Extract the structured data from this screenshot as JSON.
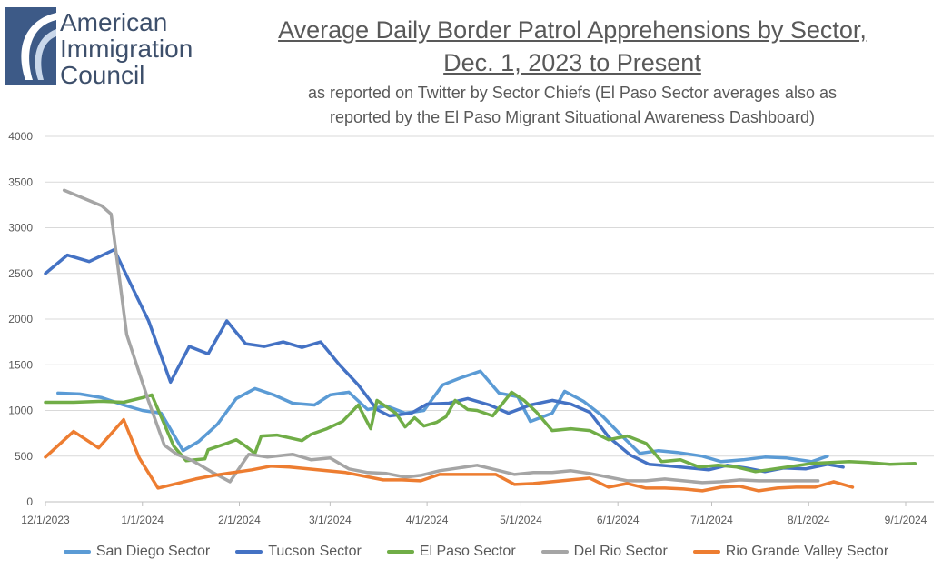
{
  "logo": {
    "line1": "American",
    "line2": "Immigration",
    "line3": "Council"
  },
  "title_line1": "Average Daily Border Patrol Apprehensions by Sector,",
  "title_line2": "Dec. 1, 2023 to Present",
  "subtitle_line1": "as reported on Twitter by Sector Chiefs (El Paso Sector averages also as",
  "subtitle_line2": "reported by the El Paso Migrant Situational Awareness Dashboard)",
  "chart_data": {
    "type": "line",
    "title": "Average Daily Border Patrol Apprehensions by Sector, Dec. 1, 2023 to Present",
    "xlabel": "",
    "ylabel": "",
    "ylim": [
      0,
      4000
    ],
    "yticks": [
      "0",
      "500",
      "1000",
      "1500",
      "2000",
      "2500",
      "3000",
      "3500",
      "4000"
    ],
    "xticks": [
      "12/1/2023",
      "1/1/2024",
      "2/1/2024",
      "3/1/2024",
      "4/1/2024",
      "5/1/2024",
      "6/1/2024",
      "7/1/2024",
      "8/1/2024",
      "9/1/2024"
    ],
    "xrange_days": [
      0,
      284
    ],
    "grid": true,
    "legend_position": "bottom",
    "series": [
      {
        "name": "San Diego Sector",
        "color": "#5b9bd5",
        "points": [
          [
            4,
            1190
          ],
          [
            11,
            1180
          ],
          [
            18,
            1140
          ],
          [
            25,
            1060
          ],
          [
            31,
            1000
          ],
          [
            37,
            970
          ],
          [
            44,
            560
          ],
          [
            49,
            660
          ],
          [
            55,
            850
          ],
          [
            61,
            1130
          ],
          [
            67,
            1240
          ],
          [
            73,
            1170
          ],
          [
            79,
            1080
          ],
          [
            86,
            1060
          ],
          [
            91,
            1170
          ],
          [
            97,
            1200
          ],
          [
            103,
            1010
          ],
          [
            109,
            1050
          ],
          [
            115,
            970
          ],
          [
            121,
            1000
          ],
          [
            127,
            1280
          ],
          [
            133,
            1360
          ],
          [
            139,
            1430
          ],
          [
            145,
            1190
          ],
          [
            151,
            1150
          ],
          [
            155,
            880
          ],
          [
            162,
            970
          ],
          [
            166,
            1210
          ],
          [
            172,
            1100
          ],
          [
            178,
            940
          ],
          [
            184,
            730
          ],
          [
            190,
            530
          ],
          [
            196,
            560
          ],
          [
            202,
            540
          ],
          [
            210,
            500
          ],
          [
            216,
            440
          ],
          [
            223,
            460
          ],
          [
            230,
            490
          ],
          [
            237,
            480
          ],
          [
            245,
            440
          ],
          [
            250,
            500
          ]
        ]
      },
      {
        "name": "Tucson Sector",
        "color": "#4472c4",
        "points": [
          [
            0,
            2500
          ],
          [
            7,
            2700
          ],
          [
            14,
            2630
          ],
          [
            22,
            2760
          ],
          [
            27,
            2400
          ],
          [
            33,
            1980
          ],
          [
            40,
            1310
          ],
          [
            46,
            1700
          ],
          [
            52,
            1620
          ],
          [
            58,
            1980
          ],
          [
            64,
            1730
          ],
          [
            70,
            1700
          ],
          [
            76,
            1750
          ],
          [
            82,
            1690
          ],
          [
            88,
            1750
          ],
          [
            94,
            1500
          ],
          [
            100,
            1280
          ],
          [
            106,
            1010
          ],
          [
            110,
            940
          ],
          [
            117,
            970
          ],
          [
            122,
            1070
          ],
          [
            129,
            1080
          ],
          [
            135,
            1130
          ],
          [
            142,
            1060
          ],
          [
            148,
            970
          ],
          [
            155,
            1060
          ],
          [
            162,
            1110
          ],
          [
            168,
            1070
          ],
          [
            174,
            980
          ],
          [
            180,
            710
          ],
          [
            187,
            510
          ],
          [
            193,
            410
          ],
          [
            200,
            390
          ],
          [
            206,
            370
          ],
          [
            212,
            350
          ],
          [
            218,
            400
          ],
          [
            224,
            370
          ],
          [
            230,
            330
          ],
          [
            236,
            370
          ],
          [
            243,
            360
          ],
          [
            250,
            410
          ],
          [
            255,
            380
          ]
        ]
      },
      {
        "name": "El Paso Sector",
        "color": "#70ad47",
        "points": [
          [
            0,
            1090
          ],
          [
            9,
            1090
          ],
          [
            18,
            1100
          ],
          [
            25,
            1090
          ],
          [
            31,
            1140
          ],
          [
            34,
            1170
          ],
          [
            41,
            610
          ],
          [
            45,
            450
          ],
          [
            51,
            470
          ],
          [
            52,
            570
          ],
          [
            58,
            640
          ],
          [
            61,
            680
          ],
          [
            64,
            610
          ],
          [
            67,
            530
          ],
          [
            69,
            720
          ],
          [
            74,
            730
          ],
          [
            78,
            700
          ],
          [
            82,
            670
          ],
          [
            85,
            740
          ],
          [
            90,
            800
          ],
          [
            95,
            880
          ],
          [
            100,
            1060
          ],
          [
            104,
            800
          ],
          [
            106,
            1110
          ],
          [
            112,
            970
          ],
          [
            115,
            820
          ],
          [
            118,
            920
          ],
          [
            121,
            830
          ],
          [
            125,
            870
          ],
          [
            128,
            930
          ],
          [
            131,
            1110
          ],
          [
            135,
            1010
          ],
          [
            138,
            1000
          ],
          [
            143,
            940
          ],
          [
            149,
            1200
          ],
          [
            153,
            1110
          ],
          [
            157,
            980
          ],
          [
            162,
            780
          ],
          [
            168,
            800
          ],
          [
            174,
            780
          ],
          [
            180,
            680
          ],
          [
            186,
            720
          ],
          [
            192,
            640
          ],
          [
            197,
            440
          ],
          [
            203,
            460
          ],
          [
            209,
            380
          ],
          [
            215,
            400
          ],
          [
            221,
            380
          ],
          [
            227,
            330
          ],
          [
            233,
            360
          ],
          [
            239,
            390
          ],
          [
            245,
            420
          ],
          [
            251,
            430
          ],
          [
            257,
            440
          ],
          [
            263,
            430
          ],
          [
            270,
            410
          ],
          [
            278,
            420
          ]
        ]
      },
      {
        "name": "Del Rio Sector",
        "color": "#a5a5a5",
        "points": [
          [
            6,
            3410
          ],
          [
            18,
            3240
          ],
          [
            21,
            3150
          ],
          [
            26,
            1830
          ],
          [
            33,
            1100
          ],
          [
            38,
            620
          ],
          [
            42,
            520
          ],
          [
            47,
            450
          ],
          [
            53,
            330
          ],
          [
            59,
            220
          ],
          [
            65,
            520
          ],
          [
            71,
            490
          ],
          [
            79,
            520
          ],
          [
            85,
            460
          ],
          [
            91,
            480
          ],
          [
            97,
            360
          ],
          [
            103,
            320
          ],
          [
            109,
            310
          ],
          [
            115,
            270
          ],
          [
            120,
            290
          ],
          [
            126,
            340
          ],
          [
            132,
            370
          ],
          [
            138,
            400
          ],
          [
            144,
            350
          ],
          [
            150,
            300
          ],
          [
            156,
            320
          ],
          [
            162,
            320
          ],
          [
            168,
            340
          ],
          [
            174,
            310
          ],
          [
            180,
            270
          ],
          [
            186,
            230
          ],
          [
            192,
            230
          ],
          [
            198,
            250
          ],
          [
            204,
            230
          ],
          [
            210,
            210
          ],
          [
            216,
            220
          ],
          [
            222,
            240
          ],
          [
            228,
            230
          ],
          [
            234,
            230
          ],
          [
            240,
            230
          ],
          [
            247,
            230
          ]
        ]
      },
      {
        "name": "Rio Grande Valley Sector",
        "color": "#ed7d31",
        "points": [
          [
            0,
            490
          ],
          [
            9,
            770
          ],
          [
            17,
            590
          ],
          [
            25,
            900
          ],
          [
            30,
            480
          ],
          [
            36,
            150
          ],
          [
            42,
            200
          ],
          [
            48,
            250
          ],
          [
            54,
            290
          ],
          [
            60,
            320
          ],
          [
            66,
            350
          ],
          [
            72,
            390
          ],
          [
            78,
            380
          ],
          [
            84,
            360
          ],
          [
            90,
            340
          ],
          [
            96,
            320
          ],
          [
            102,
            280
          ],
          [
            108,
            240
          ],
          [
            114,
            240
          ],
          [
            120,
            230
          ],
          [
            126,
            300
          ],
          [
            132,
            300
          ],
          [
            138,
            300
          ],
          [
            144,
            300
          ],
          [
            150,
            190
          ],
          [
            156,
            200
          ],
          [
            162,
            220
          ],
          [
            168,
            240
          ],
          [
            174,
            260
          ],
          [
            180,
            160
          ],
          [
            186,
            200
          ],
          [
            192,
            150
          ],
          [
            198,
            150
          ],
          [
            204,
            140
          ],
          [
            210,
            120
          ],
          [
            216,
            160
          ],
          [
            222,
            170
          ],
          [
            228,
            120
          ],
          [
            234,
            150
          ],
          [
            240,
            160
          ],
          [
            246,
            160
          ],
          [
            252,
            220
          ],
          [
            258,
            160
          ]
        ]
      }
    ]
  }
}
